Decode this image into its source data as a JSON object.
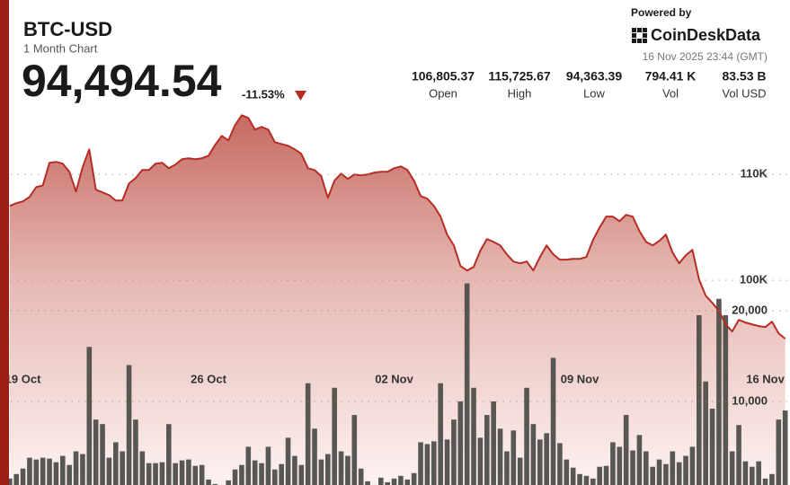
{
  "header": {
    "title": "BTC-USD",
    "subtitle": "1 Month Chart",
    "price": "94,494.54",
    "change": "-11.53%",
    "powered_by": "Powered by",
    "brand": "CoinDeskData",
    "timestamp": "16 Nov 2025 23:44 (GMT)",
    "stats": [
      {
        "value": "106,805.37",
        "label": "Open"
      },
      {
        "value": "115,725.67",
        "label": "High"
      },
      {
        "value": "94,363.39",
        "label": "Low"
      },
      {
        "value": "794.41 K",
        "label": "Vol"
      },
      {
        "value": "83.53 B",
        "label": "Vol USD"
      }
    ]
  },
  "chart_data": {
    "type": "line",
    "categories": [
      null,
      null,
      "19 Oct",
      null,
      null,
      null,
      null,
      null,
      null,
      null,
      null,
      null,
      null,
      null,
      null,
      null,
      null,
      null,
      null,
      null,
      null,
      null,
      null,
      null,
      null,
      null,
      null,
      null,
      null,
      null,
      "26 Oct",
      null,
      null,
      null,
      null,
      null,
      null,
      null,
      null,
      null,
      null,
      null,
      null,
      null,
      null,
      null,
      null,
      null,
      null,
      null,
      null,
      null,
      null,
      null,
      null,
      null,
      null,
      null,
      "02 Nov",
      null,
      null,
      null,
      null,
      null,
      null,
      null,
      null,
      null,
      null,
      null,
      null,
      null,
      null,
      null,
      null,
      null,
      null,
      null,
      null,
      null,
      null,
      null,
      null,
      null,
      null,
      null,
      "09 Nov",
      null,
      null,
      null,
      null,
      null,
      null,
      null,
      null,
      null,
      null,
      null,
      null,
      null,
      null,
      null,
      null,
      null,
      null,
      null,
      null,
      null,
      null,
      null,
      null,
      null,
      null,
      null,
      "16 Nov",
      null,
      null,
      null
    ],
    "series": [
      {
        "type": "line",
        "color": "#b52d24",
        "values": [
          107030,
          107290,
          107460,
          107880,
          108810,
          108980,
          111100,
          111190,
          111020,
          110250,
          108390,
          110680,
          112370,
          108560,
          108310,
          108050,
          107540,
          107540,
          109150,
          109660,
          110420,
          110420,
          111020,
          111100,
          110590,
          110930,
          111440,
          111530,
          111440,
          111530,
          111780,
          112800,
          113640,
          113220,
          114660,
          115590,
          115340,
          114240,
          114490,
          114240,
          113050,
          112880,
          112710,
          112370,
          111950,
          110590,
          110420,
          109830,
          107800,
          109410,
          110080,
          109580,
          110000,
          109920,
          110000,
          110170,
          110250,
          110250,
          110590,
          110760,
          110420,
          109410,
          107970,
          107710,
          107030,
          106020,
          104320,
          103300,
          101360,
          100930,
          101270,
          102800,
          103900,
          103640,
          103300,
          102460,
          101780,
          101610,
          101780,
          100930,
          102200,
          103300,
          102460,
          101950,
          101950,
          102030,
          102030,
          102200,
          103810,
          105000,
          106020,
          106020,
          105590,
          106190,
          106020,
          104660,
          103640,
          103300,
          103730,
          104320,
          102630,
          101610,
          102370,
          102880,
          100080,
          98560,
          97880,
          97120,
          95850,
          95170,
          96270,
          96020,
          95850,
          95680,
          95590,
          96100,
          95000,
          94490
        ]
      },
      {
        "type": "bar",
        "axis": "y2",
        "color": "#4a4b45",
        "values": [
          1500,
          2000,
          2600,
          3800,
          3600,
          3800,
          3700,
          3300,
          4000,
          3000,
          4500,
          4200,
          16000,
          8000,
          7500,
          3800,
          5500,
          4500,
          14000,
          8000,
          4500,
          3200,
          3200,
          3300,
          7500,
          3200,
          3500,
          3600,
          2900,
          3000,
          1400,
          900,
          600,
          1300,
          2500,
          3000,
          5000,
          3500,
          3200,
          5000,
          2500,
          3100,
          6000,
          4000,
          3000,
          12000,
          7000,
          3600,
          4200,
          11500,
          4500,
          4000,
          8500,
          2600,
          1200,
          800,
          1600,
          1100,
          1500,
          1800,
          1400,
          2100,
          5500,
          5300,
          5600,
          12000,
          5800,
          8000,
          10000,
          23000,
          11500,
          6000,
          8500,
          10000,
          7000,
          4500,
          6800,
          3800,
          11500,
          7500,
          5800,
          6500,
          14800,
          5400,
          3600,
          2700,
          2000,
          1800,
          1500,
          2800,
          2900,
          5500,
          5000,
          8500,
          4600,
          6300,
          4500,
          2800,
          3600,
          3100,
          4500,
          3300,
          4000,
          5000,
          19500,
          12200,
          9200,
          21300,
          19500,
          4500,
          7400,
          3400,
          2800,
          3400,
          1500,
          2000,
          8000,
          9000
        ]
      }
    ],
    "ylim": [
      80000,
      116000
    ],
    "yticks": [
      {
        "value": 100000,
        "label": "100K"
      },
      {
        "value": 110000,
        "label": "110K"
      }
    ],
    "y2lim": [
      0,
      42000
    ],
    "y2ticks": [
      {
        "value": 10000,
        "label": "10,000"
      },
      {
        "value": 20000,
        "label": "20,000"
      }
    ],
    "grid": true
  }
}
